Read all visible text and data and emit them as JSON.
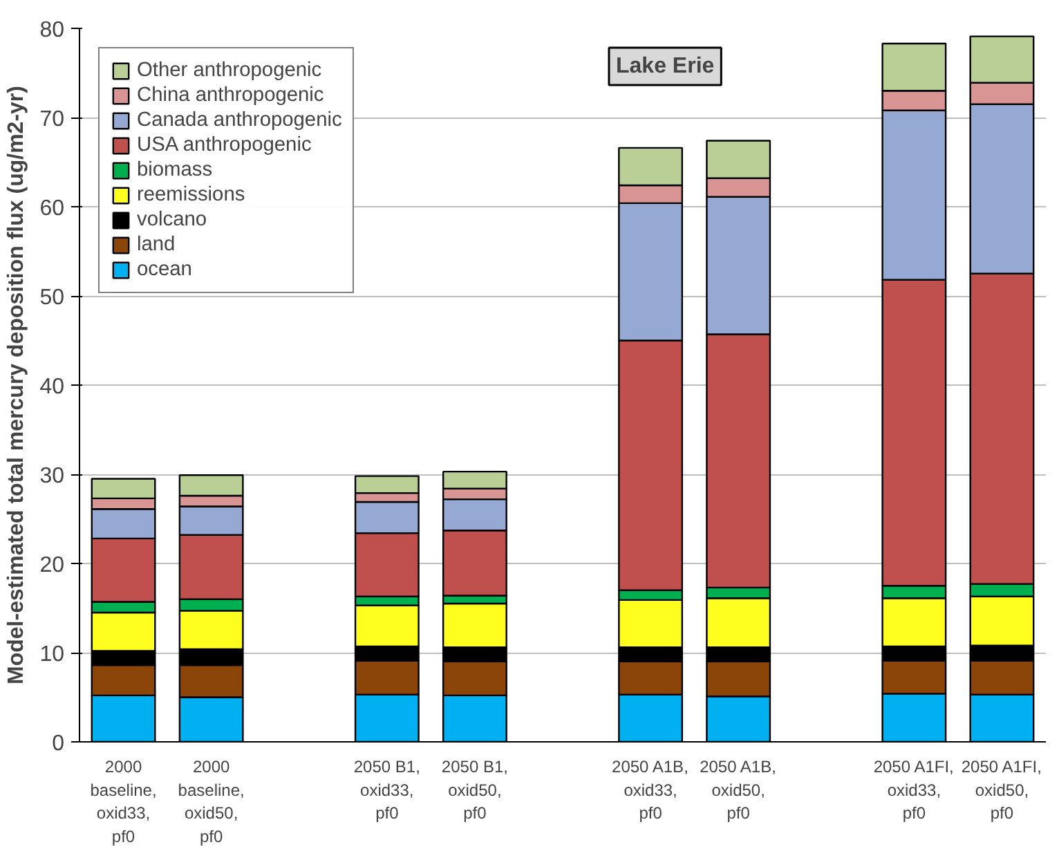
{
  "chart_data": {
    "type": "bar",
    "stacked": true,
    "ylabel": "Model-estimated total mercury deposition flux (ug/m2-yr)",
    "annotations": [
      "Lake Erie"
    ],
    "categories": [
      "2000 baseline, oxid33, pf0",
      "2000 baseline, oxid50, pf0",
      null,
      "2050 B1, oxid33, pf0",
      "2050 B1, oxid50, pf0",
      null,
      "2050 A1B, oxid33, pf0",
      "2050 A1B, oxid50, pf0",
      null,
      "2050 A1FI, oxid33, pf0",
      "2050 A1FI, oxid50, pf0"
    ],
    "series": [
      {
        "name": "ocean",
        "color": "#00b0f0",
        "values": [
          5.2,
          5.0,
          null,
          5.3,
          5.2,
          null,
          5.3,
          5.1,
          null,
          5.4,
          5.3
        ]
      },
      {
        "name": "land",
        "color": "#8b4509",
        "values": [
          3.4,
          3.6,
          null,
          3.8,
          3.8,
          null,
          3.7,
          3.9,
          null,
          3.7,
          3.8
        ]
      },
      {
        "name": "volcano",
        "color": "#000000",
        "values": [
          1.6,
          1.8,
          null,
          1.6,
          1.6,
          null,
          1.6,
          1.6,
          null,
          1.6,
          1.7
        ]
      },
      {
        "name": "reemissions",
        "color": "#ffff1f",
        "values": [
          4.3,
          4.3,
          null,
          4.6,
          4.9,
          null,
          5.3,
          5.5,
          null,
          5.4,
          5.5
        ]
      },
      {
        "name": "biomass",
        "color": "#00b050",
        "values": [
          1.2,
          1.3,
          null,
          1.0,
          0.9,
          null,
          1.1,
          1.2,
          null,
          1.4,
          1.4
        ]
      },
      {
        "name": "USA anthropogenic",
        "color": "#c0504d",
        "values": [
          7.1,
          7.2,
          null,
          7.1,
          7.3,
          null,
          28.0,
          28.4,
          null,
          34.3,
          34.8
        ]
      },
      {
        "name": "Canada anthropogenic",
        "color": "#95a9d2",
        "values": [
          3.3,
          3.2,
          null,
          3.5,
          3.5,
          null,
          15.4,
          15.4,
          null,
          19.0,
          19.0
        ]
      },
      {
        "name": "China anthropogenic",
        "color": "#d99594",
        "values": [
          1.2,
          1.2,
          null,
          1.0,
          1.2,
          null,
          2.0,
          2.1,
          null,
          2.2,
          2.4
        ]
      },
      {
        "name": "Other anthropogenic",
        "color": "#b9cf96",
        "values": [
          2.2,
          2.3,
          null,
          1.9,
          1.9,
          null,
          4.2,
          4.2,
          null,
          5.3,
          5.2
        ]
      }
    ],
    "ylim": [
      0,
      80
    ],
    "yticks": [
      0,
      10,
      20,
      30,
      40,
      50,
      60,
      70,
      80
    ],
    "grid": "y",
    "legend": "top left"
  }
}
